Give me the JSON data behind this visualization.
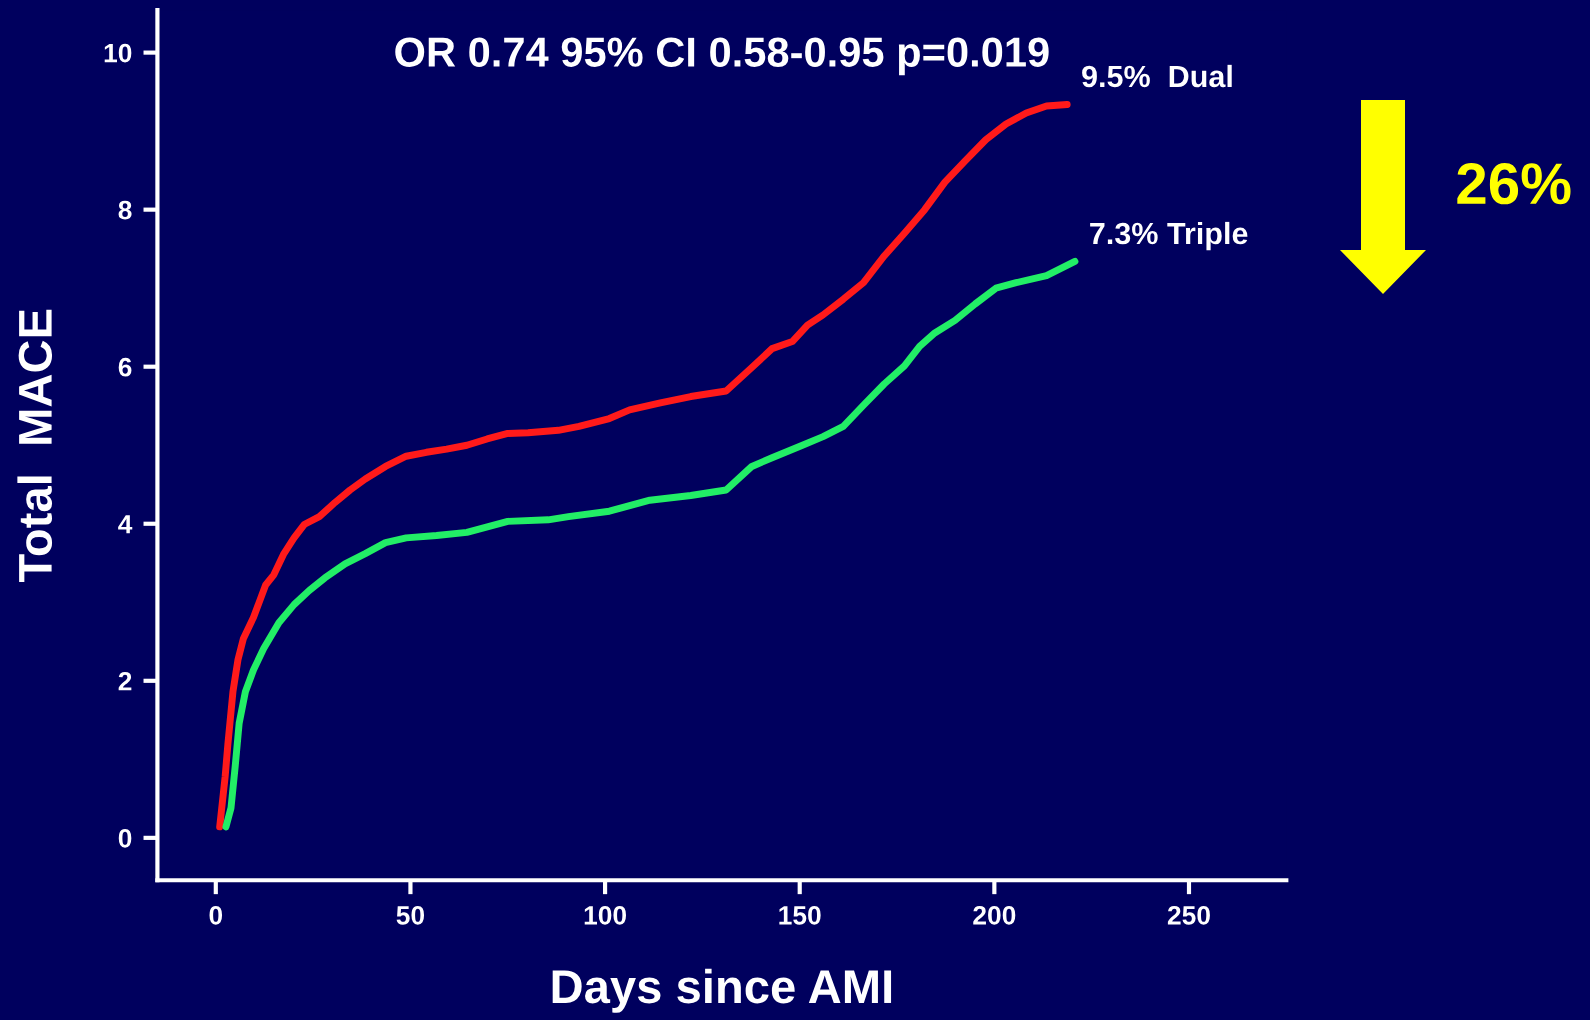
{
  "chart_data": {
    "type": "line",
    "title": "OR 0.74 95% CI 0.58-0.95 p=0.019",
    "xlabel": "Days since AMI",
    "ylabel": "Total  MACE",
    "xlim": [
      -15,
      275
    ],
    "ylim": [
      -0.54,
      10.54
    ],
    "xticks": [
      0,
      50,
      100,
      150,
      200,
      250
    ],
    "yticks": [
      0,
      2,
      4,
      6,
      8,
      10
    ],
    "grid": false,
    "legend": false,
    "marker": "none",
    "line_style": "solid",
    "series": [
      {
        "color": "#ff1a1a",
        "x": [
          1.0,
          2.4,
          3.1,
          4.4,
          5.7,
          7.1,
          9.7,
          12.8,
          14.9,
          17.5,
          20.1,
          22.7,
          26.6,
          30.6,
          34.5,
          38.4,
          43.6,
          48.9,
          54.1,
          59.3,
          64.5,
          69.7,
          75.0,
          80.2,
          88.0,
          93.3,
          101.1,
          106.3,
          114.2,
          122.0,
          131.1,
          137.7,
          142.9,
          148.1,
          152.0,
          156.0,
          161.2,
          166.4,
          171.7,
          176.9,
          182.1,
          187.3,
          192.5,
          197.8,
          203.0,
          208.2,
          213.4,
          218.7
        ],
        "values": [
          0.14,
          0.78,
          1.19,
          1.86,
          2.27,
          2.54,
          2.81,
          3.22,
          3.35,
          3.62,
          3.82,
          3.99,
          4.09,
          4.27,
          4.43,
          4.57,
          4.73,
          4.86,
          4.91,
          4.95,
          5.0,
          5.08,
          5.15,
          5.16,
          5.19,
          5.24,
          5.34,
          5.45,
          5.54,
          5.62,
          5.69,
          5.99,
          6.23,
          6.32,
          6.53,
          6.66,
          6.86,
          7.07,
          7.41,
          7.7,
          8.0,
          8.35,
          8.62,
          8.89,
          9.09,
          9.23,
          9.32,
          9.34
        ]
      },
      {
        "color": "#22ee66",
        "x": [
          2.6,
          3.9,
          5.0,
          6.0,
          7.6,
          9.7,
          12.3,
          16.2,
          20.1,
          24.0,
          28.0,
          33.2,
          38.4,
          43.6,
          48.9,
          56.7,
          64.5,
          75.0,
          85.4,
          90.6,
          101.1,
          111.5,
          122.0,
          131.1,
          137.7,
          142.9,
          150.7,
          156.0,
          161.2,
          166.4,
          171.7,
          176.9,
          180.8,
          184.7,
          189.9,
          195.1,
          200.4,
          205.6,
          213.4,
          220.7
        ],
        "values": [
          0.14,
          0.38,
          0.92,
          1.46,
          1.86,
          2.14,
          2.41,
          2.74,
          2.97,
          3.15,
          3.31,
          3.49,
          3.62,
          3.76,
          3.82,
          3.85,
          3.89,
          4.03,
          4.05,
          4.09,
          4.16,
          4.3,
          4.36,
          4.43,
          4.73,
          4.84,
          5.0,
          5.11,
          5.24,
          5.51,
          5.78,
          6.01,
          6.26,
          6.43,
          6.59,
          6.8,
          7.0,
          7.07,
          7.16,
          7.34
        ]
      }
    ],
    "annotations": [
      {
        "text": "9.5%  Dual",
        "x": 218.7,
        "y": 9.34
      },
      {
        "text": "7.3% Triple",
        "x": 220.7,
        "y": 7.34
      },
      "26%"
    ]
  }
}
